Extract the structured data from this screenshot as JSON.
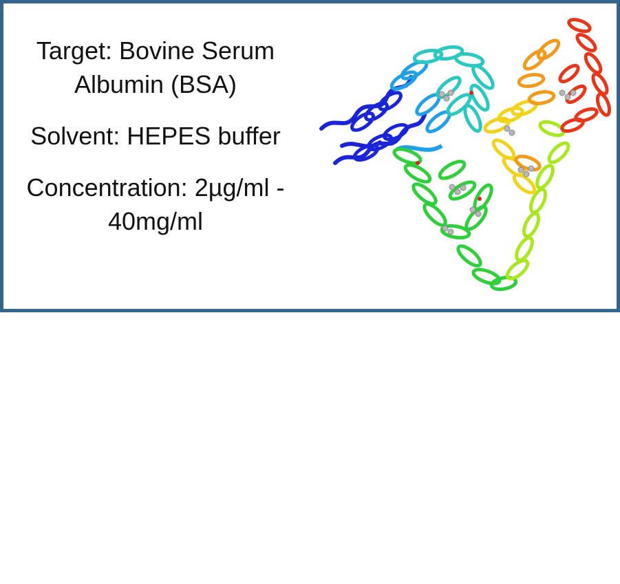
{
  "panel": {
    "border_color": "#34658e",
    "lines": [
      "Target: Bovine Serum Albumin (BSA)",
      "Solvent: HEPES buffer",
      "Concentration: 2µg/ml - 40mg/ml"
    ]
  },
  "image": {
    "icon": "protein-ribbon-structure",
    "colors": [
      "#1a25d8",
      "#1fa0e8",
      "#29c9c1",
      "#2fcf3c",
      "#a9e81f",
      "#f2d21b",
      "#f29a1a",
      "#e8361a"
    ]
  }
}
